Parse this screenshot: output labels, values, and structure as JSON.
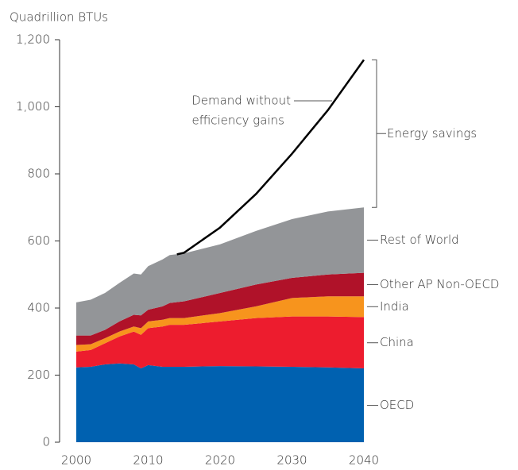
{
  "chart_data": {
    "type": "stacked_area",
    "y_label": "Quadrillion BTUs",
    "x": [
      2000,
      2002,
      2004,
      2006,
      2008,
      2009,
      2010,
      2012,
      2013,
      2015,
      2020,
      2025,
      2030,
      2035,
      2040
    ],
    "series": [
      {
        "name": "OECD",
        "color": "#0061b0",
        "values": [
          223,
          225,
          232,
          235,
          232,
          220,
          230,
          225,
          225,
          225,
          227,
          226,
          225,
          223,
          220
        ]
      },
      {
        "name": "China",
        "color": "#ed1c2e",
        "values": [
          47,
          50,
          63,
          80,
          98,
          100,
          110,
          120,
          125,
          125,
          133,
          144,
          150,
          152,
          153
        ]
      },
      {
        "name": "India",
        "color": "#f7941d",
        "values": [
          20,
          17,
          15,
          15,
          15,
          20,
          20,
          20,
          20,
          20,
          25,
          35,
          55,
          60,
          62
        ]
      },
      {
        "name": "Other AP Non-OECD",
        "color": "#b01229",
        "values": [
          28,
          26,
          25,
          30,
          35,
          38,
          35,
          40,
          45,
          50,
          60,
          65,
          60,
          65,
          70
        ]
      },
      {
        "name": "Rest of World",
        "color": "#939598",
        "values": [
          99,
          107,
          110,
          115,
          123,
          122,
          130,
          140,
          143,
          143,
          145,
          160,
          175,
          188,
          195
        ]
      }
    ],
    "demand_line": {
      "name_lines": [
        "Demand without",
        "efficiency gains"
      ],
      "color": "#000000",
      "x": [
        2014,
        2015,
        2020,
        2025,
        2030,
        2035,
        2040
      ],
      "values": [
        560,
        565,
        640,
        740,
        860,
        990,
        1140
      ]
    },
    "bracket_label": "Energy savings",
    "xlim": [
      2000,
      2040
    ],
    "xticks": [
      2000,
      2010,
      2020,
      2030,
      2040
    ],
    "ylim": [
      0,
      1200
    ],
    "yticks": [
      0,
      200,
      400,
      600,
      800,
      {
        "value": 1000,
        "label": "1,000"
      },
      {
        "value": 1200,
        "label": "1,200"
      }
    ]
  }
}
